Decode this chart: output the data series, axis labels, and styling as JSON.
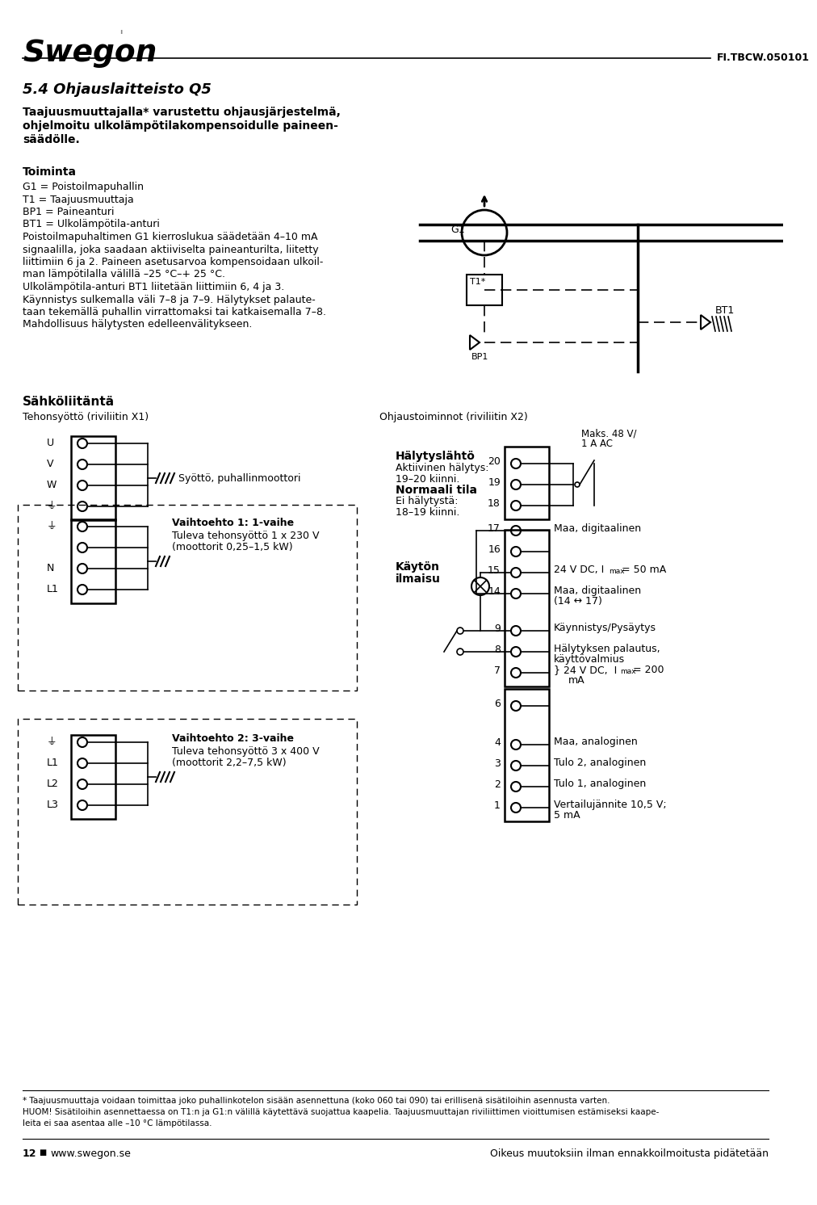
{
  "bg_color": "#ffffff",
  "title": "5.4 Ohjauslaitteisto Q5",
  "subtitle_lines": [
    "Taajuusmuuttajalla* varustettu ohjausjärjestelmä,",
    "ohjelmoitu ulkolämpötilakompensoidulle paineen-",
    "säädölle."
  ],
  "section_toiminta": "Toiminta",
  "toiminta_lines": [
    "G1 = Poistoilmapuhallin",
    "T1 = Taajuusmuuttaja",
    "BP1 = Paineanturi",
    "BT1 = Ulkolämpötila-anturi",
    "Poistoilmapuhaltimen G1 kierroslukua säädetään 4–10 mA",
    "signaalilla, joka saadaan aktiiviselta paineanturilta, liitetty",
    "liittimiin 6 ja 2. Paineen asetusarvoa kompensoidaan ulkoil-",
    "man lämpötilalla välillä –25 °C–+ 25 °C.",
    "Ulkolämpötila-anturi BT1 liitetään liittimiin 6, 4 ja 3.",
    "Käynnistys sulkemalla väli 7–8 ja 7–9. Hälytykset palaute-",
    "taan tekemällä puhallin virrattomaksi tai katkaisemalla 7–8.",
    "Mahdollisuus hälytysten edelleenvälitykseen."
  ],
  "doc_number": "FI.TBCW.050101",
  "logo": "Swegon",
  "sahko_title": "Sähköliitäntä",
  "tehonsyotto_label": "Tehonsyöttö (riviliitin X1)",
  "ohjaus_label": "Ohjaustoiminnot (riviliitin X2)",
  "maks_label_1": "Maks. 48 V/",
  "maks_label_2": "1 A AC",
  "left_top_labels": [
    "U",
    "V",
    "W",
    "⏚"
  ],
  "left_mid_labels": [
    "⏚",
    "",
    "N",
    "L1"
  ],
  "left_bot_labels": [
    "⏚",
    "L1",
    "L2",
    "L3"
  ],
  "vaihto1_title": "Vaihtoehto 1: 1-vaihe",
  "vaihto1_text": [
    "Tuleva tehonsyöttö 1 x 230 V",
    "(moottorit 0,25–1,5 kW)"
  ],
  "vaihto2_title": "Vaihtoehto 2: 3-vaihe",
  "vaihto2_text": [
    "Tuleva tehonsyöttö 3 x 400 V",
    "(moottorit 2,2–7,5 kW)"
  ],
  "syotto_label": "Syöttö, puhallinmoottori",
  "kayton_title": "Käytön",
  "kayton_title2": "ilmaisu",
  "halytys_title": "Hälytyslähtö",
  "halytys_text": [
    "Aktiivinen hälytys:",
    "19–20 kiinni."
  ],
  "normaali_title": "Normaali tila",
  "normaali_text": [
    "Ei hälytystä:",
    "18–19 kiinni."
  ],
  "footer_note1": "* Taajuusmuuttaja voidaan toimittaa joko puhallinkotelon sisään asennettuna (koko 060 tai 090) tai erillisenä sisätiloihin asennusta varten.",
  "footer_note2": "HUOM! Sisätiloihin asennettaessa on T1:n ja G1:n välillä käytettävä suojattua kaapelia. Taajuusmuuttajan riviliittimen vioittumisen estämiseksi kaape-",
  "footer_note3": "leita ei saa asentaa alle –10 °C lämpötilassa.",
  "footer_page": "12",
  "footer_web": "www.swegon.se",
  "footer_rights": "Oikeus muutoksiin ilman ennakkoilmoitusta pidätetään"
}
